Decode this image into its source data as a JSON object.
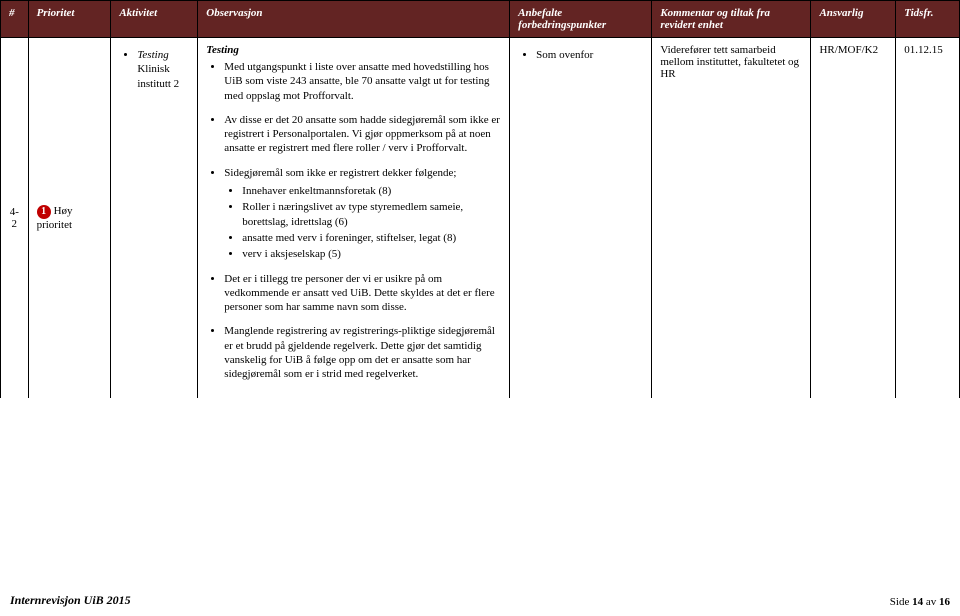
{
  "header": {
    "num": "#",
    "prioritet": "Prioritet",
    "aktivitet": "Aktivitet",
    "observasjon": "Observasjon",
    "anbefalte": "Anbefalte forbedringspunkter",
    "kommentar": "Kommentar og tiltak fra revidert enhet",
    "ansvarlig": "Ansvarlig",
    "tidsfr": "Tidsfr."
  },
  "row": {
    "num": "4-2",
    "prioritet_label": "Høy prioritet",
    "prioritet_num": "1",
    "aktivitet_title": "Testing",
    "aktivitet_sub": "Klinisk institutt 2",
    "obs_title": "Testing",
    "obs_p1": "Med utgangspunkt i liste over ansatte med hovedstilling hos UiB som viste 243 ansatte, ble 70 ansatte valgt ut for testing med oppslag mot Profforvalt.",
    "obs_p2": "Av disse er det 20 ansatte som hadde sidegjøremål som ikke er registrert i Personalportalen. Vi gjør oppmerksom på at noen ansatte er registrert med flere roller / verv i Profforvalt.",
    "obs_p3_lead": "Sidegjøremål som ikke er registrert dekker følgende;",
    "obs_p3_items": {
      "a": "Innehaver enkeltmannsforetak (8)",
      "b": "Roller i næringslivet av type styremedlem sameie, borettslag, idrettslag (6)",
      "c": "ansatte med verv i foreninger, stiftelser, legat (8)",
      "d": "verv i aksjeselskap (5)"
    },
    "obs_p4": "Det er i tillegg tre personer der vi er usikre på om vedkommende er ansatt ved UiB. Dette skyldes at det er flere personer som har samme navn som disse.",
    "obs_p5": "Manglende registrering av registrerings-pliktige sidegjøremål er et brudd på gjeldende regelverk. Dette gjør det samtidig vanskelig for UiB å følge opp om det er ansatte som har sidegjøremål som er i strid med regelverket.",
    "anbefalte_item": "Som ovenfor",
    "kommentar_text": "Viderefører tett samarbeid mellom instituttet, fakultetet og HR",
    "ansvarlig": "HR/MOF/K2",
    "tidsfr": "01.12.15"
  },
  "footer": {
    "left": "Internrevisjon UiB 2015",
    "right_prefix": "Side ",
    "page": "14",
    "right_middle": " av ",
    "total": "16"
  }
}
